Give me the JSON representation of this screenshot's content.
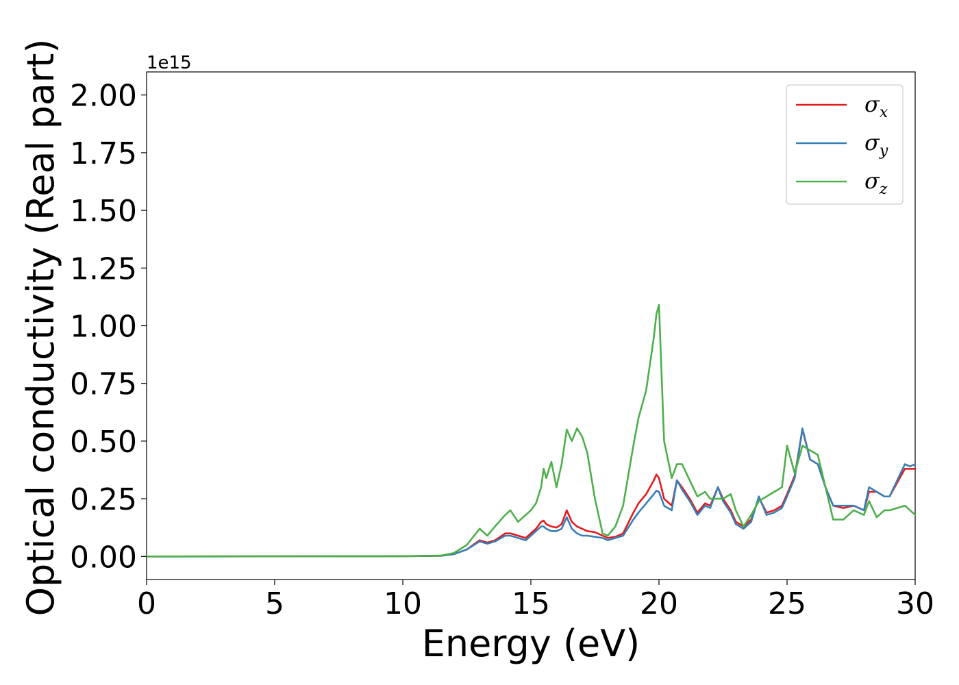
{
  "chart_data": {
    "type": "line",
    "xlabel": "Energy (eV)",
    "ylabel": "Optical conductivity (Real part)",
    "y_offset_label": "1e15",
    "xlim": [
      0,
      30
    ],
    "ylim": [
      -0.1,
      2.1
    ],
    "xticks": [
      "0",
      "5",
      "10",
      "15",
      "20",
      "25",
      "30"
    ],
    "yticks": [
      "0.00",
      "0.25",
      "0.50",
      "0.75",
      "1.00",
      "1.25",
      "1.50",
      "1.75",
      "2.00"
    ],
    "grid": false,
    "legend_position": "top-right",
    "x": [
      0,
      10,
      11.5,
      12,
      12.5,
      13,
      13.3,
      13.6,
      14,
      14.2,
      14.5,
      14.8,
      15,
      15.2,
      15.4,
      15.5,
      15.6,
      15.8,
      16,
      16.2,
      16.4,
      16.6,
      16.8,
      17,
      17.2,
      17.5,
      17.8,
      18,
      18.3,
      18.6,
      19,
      19.2,
      19.5,
      19.8,
      19.9,
      20,
      20.2,
      20.5,
      20.7,
      20.9,
      21.2,
      21.5,
      21.8,
      22,
      22.3,
      22.5,
      22.8,
      23,
      23.3,
      23.6,
      23.9,
      24.2,
      24.5,
      24.8,
      25,
      25.3,
      25.6,
      25.9,
      26.2,
      26.5,
      26.8,
      27.2,
      27.6,
      28,
      28.2,
      28.5,
      28.8,
      29,
      29.3,
      29.6,
      29.8,
      30
    ],
    "series": [
      {
        "name": "σ",
        "subscript": "x",
        "color": "#e41a1c",
        "values": [
          0,
          0.001,
          0.003,
          0.01,
          0.03,
          0.07,
          0.06,
          0.07,
          0.1,
          0.1,
          0.09,
          0.08,
          0.1,
          0.12,
          0.15,
          0.155,
          0.14,
          0.13,
          0.125,
          0.14,
          0.2,
          0.15,
          0.13,
          0.12,
          0.11,
          0.105,
          0.09,
          0.08,
          0.085,
          0.1,
          0.19,
          0.23,
          0.27,
          0.33,
          0.355,
          0.34,
          0.25,
          0.22,
          0.33,
          0.3,
          0.25,
          0.19,
          0.23,
          0.22,
          0.3,
          0.25,
          0.2,
          0.15,
          0.13,
          0.16,
          0.255,
          0.19,
          0.2,
          0.22,
          0.27,
          0.35,
          0.55,
          0.42,
          0.4,
          0.3,
          0.22,
          0.21,
          0.22,
          0.2,
          0.28,
          0.28,
          0.26,
          0.26,
          0.32,
          0.38,
          0.38,
          0.38
        ]
      },
      {
        "name": "σ",
        "subscript": "y",
        "color": "#377eb8",
        "values": [
          0,
          0.001,
          0.003,
          0.01,
          0.03,
          0.065,
          0.055,
          0.065,
          0.09,
          0.09,
          0.08,
          0.07,
          0.09,
          0.11,
          0.13,
          0.13,
          0.12,
          0.11,
          0.11,
          0.12,
          0.17,
          0.12,
          0.1,
          0.09,
          0.09,
          0.085,
          0.08,
          0.07,
          0.08,
          0.09,
          0.16,
          0.19,
          0.23,
          0.27,
          0.285,
          0.28,
          0.22,
          0.2,
          0.33,
          0.29,
          0.24,
          0.18,
          0.22,
          0.21,
          0.3,
          0.24,
          0.19,
          0.14,
          0.12,
          0.15,
          0.26,
          0.18,
          0.19,
          0.21,
          0.26,
          0.34,
          0.555,
          0.42,
          0.4,
          0.3,
          0.22,
          0.22,
          0.22,
          0.2,
          0.3,
          0.28,
          0.26,
          0.26,
          0.33,
          0.4,
          0.39,
          0.4
        ]
      },
      {
        "name": "σ",
        "subscript": "z",
        "color": "#4daf4a",
        "values": [
          0,
          0.001,
          0.004,
          0.015,
          0.05,
          0.12,
          0.09,
          0.13,
          0.18,
          0.2,
          0.15,
          0.18,
          0.2,
          0.23,
          0.3,
          0.38,
          0.34,
          0.41,
          0.3,
          0.4,
          0.55,
          0.5,
          0.555,
          0.52,
          0.45,
          0.25,
          0.1,
          0.09,
          0.13,
          0.22,
          0.48,
          0.6,
          0.72,
          0.95,
          1.05,
          1.09,
          0.5,
          0.34,
          0.4,
          0.4,
          0.33,
          0.26,
          0.28,
          0.25,
          0.25,
          0.25,
          0.27,
          0.2,
          0.13,
          0.18,
          0.24,
          0.26,
          0.28,
          0.3,
          0.48,
          0.36,
          0.48,
          0.46,
          0.44,
          0.3,
          0.16,
          0.16,
          0.2,
          0.18,
          0.24,
          0.17,
          0.2,
          0.2,
          0.21,
          0.22,
          0.2,
          0.18
        ]
      }
    ]
  }
}
